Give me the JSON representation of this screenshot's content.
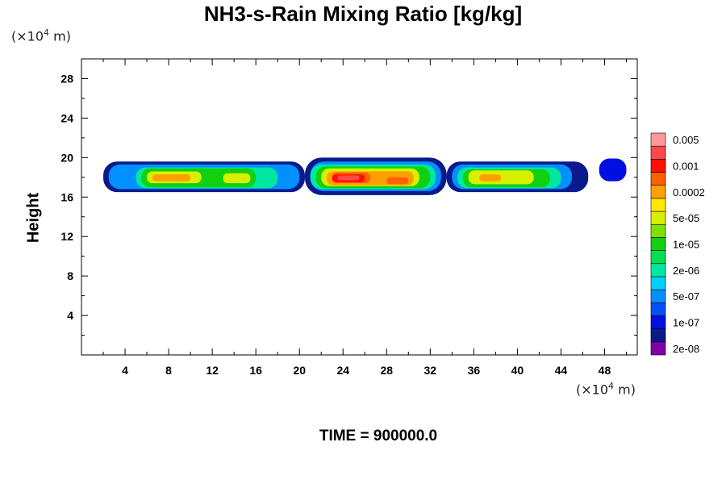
{
  "chart_data": {
    "type": "heatmap",
    "title": "NH3-s-Rain Mixing Ratio [kg/kg]",
    "xlabel": "",
    "ylabel": "Height",
    "x_unit_prefix": "(×10",
    "x_unit_exp": "4",
    "x_unit_suffix": " m)",
    "y_unit_prefix": "(×10",
    "y_unit_exp": "4",
    "y_unit_suffix": " m)",
    "xlim": [
      0,
      51
    ],
    "ylim": [
      0,
      30
    ],
    "x_ticks": [
      4,
      8,
      12,
      16,
      20,
      24,
      28,
      32,
      36,
      40,
      44,
      48
    ],
    "y_ticks": [
      4,
      8,
      12,
      16,
      20,
      24,
      28
    ],
    "time_label": "TIME = 900000.0",
    "colorbar": {
      "colors": [
        "#7f00a8",
        "#0a1a8c",
        "#0010e0",
        "#0050ff",
        "#0090ff",
        "#00d0f8",
        "#00e8a0",
        "#00e050",
        "#10d010",
        "#80e000",
        "#d8f000",
        "#ffe800",
        "#ffa000",
        "#ff6000",
        "#ff1000",
        "#ff4848",
        "#ff9898"
      ],
      "labels": [
        {
          "text": "2e-08",
          "level": 0.5
        },
        {
          "text": "1e-07",
          "level": 2.5
        },
        {
          "text": "5e-07",
          "level": 4.5
        },
        {
          "text": "2e-06",
          "level": 6.5
        },
        {
          "text": "1e-05",
          "level": 8.5
        },
        {
          "text": "5e-05",
          "level": 10.5
        },
        {
          "text": "0.0002",
          "level": 12.5
        },
        {
          "text": "0.001",
          "level": 14.5
        },
        {
          "text": "0.005",
          "level": 16.5
        }
      ]
    },
    "cells": [
      {
        "x": [
          2,
          20.5
        ],
        "y": [
          16.5,
          19.6
        ],
        "level": 1
      },
      {
        "x": [
          20.5,
          33.5
        ],
        "y": [
          16.2,
          20.0
        ],
        "level": 1
      },
      {
        "x": [
          33.5,
          46.5
        ],
        "y": [
          16.5,
          19.6
        ],
        "level": 1
      },
      {
        "x": [
          47.5,
          50
        ],
        "y": [
          17.6,
          19.9
        ],
        "level": 2
      },
      {
        "x": [
          2.5,
          20
        ],
        "y": [
          16.8,
          19.3
        ],
        "level": 4
      },
      {
        "x": [
          21,
          33
        ],
        "y": [
          16.6,
          19.6
        ],
        "level": 4
      },
      {
        "x": [
          34,
          45
        ],
        "y": [
          16.8,
          19.3
        ],
        "level": 4
      },
      {
        "x": [
          5,
          18
        ],
        "y": [
          16.9,
          19.0
        ],
        "level": 6
      },
      {
        "x": [
          21,
          32.5
        ],
        "y": [
          16.8,
          19.3
        ],
        "level": 6
      },
      {
        "x": [
          34.5,
          44
        ],
        "y": [
          16.9,
          19.0
        ],
        "level": 6
      },
      {
        "x": [
          5.5,
          16
        ],
        "y": [
          17.0,
          18.9
        ],
        "level": 8
      },
      {
        "x": [
          21.5,
          32
        ],
        "y": [
          16.9,
          19.1
        ],
        "level": 8
      },
      {
        "x": [
          35,
          43
        ],
        "y": [
          17.0,
          18.8
        ],
        "level": 8
      },
      {
        "x": [
          6,
          11
        ],
        "y": [
          17.4,
          18.6
        ],
        "level": 10
      },
      {
        "x": [
          13,
          15.5
        ],
        "y": [
          17.4,
          18.4
        ],
        "level": 10
      },
      {
        "x": [
          22,
          31
        ],
        "y": [
          17.1,
          18.9
        ],
        "level": 10
      },
      {
        "x": [
          35.5,
          41.5
        ],
        "y": [
          17.3,
          18.7
        ],
        "level": 10
      },
      {
        "x": [
          6.5,
          10
        ],
        "y": [
          17.6,
          18.3
        ],
        "level": 12
      },
      {
        "x": [
          36.5,
          38.5
        ],
        "y": [
          17.6,
          18.3
        ],
        "level": 12
      },
      {
        "x": [
          22.5,
          30.5
        ],
        "y": [
          17.2,
          18.6
        ],
        "level": 12
      },
      {
        "x": [
          23,
          26.5
        ],
        "y": [
          17.4,
          18.5
        ],
        "level": 13
      },
      {
        "x": [
          28,
          30
        ],
        "y": [
          17.3,
          18.0
        ],
        "level": 13
      },
      {
        "x": [
          23,
          26
        ],
        "y": [
          17.5,
          18.3
        ],
        "level": 14
      },
      {
        "x": [
          23.5,
          25.5
        ],
        "y": [
          17.7,
          18.2
        ],
        "level": 15
      }
    ]
  }
}
